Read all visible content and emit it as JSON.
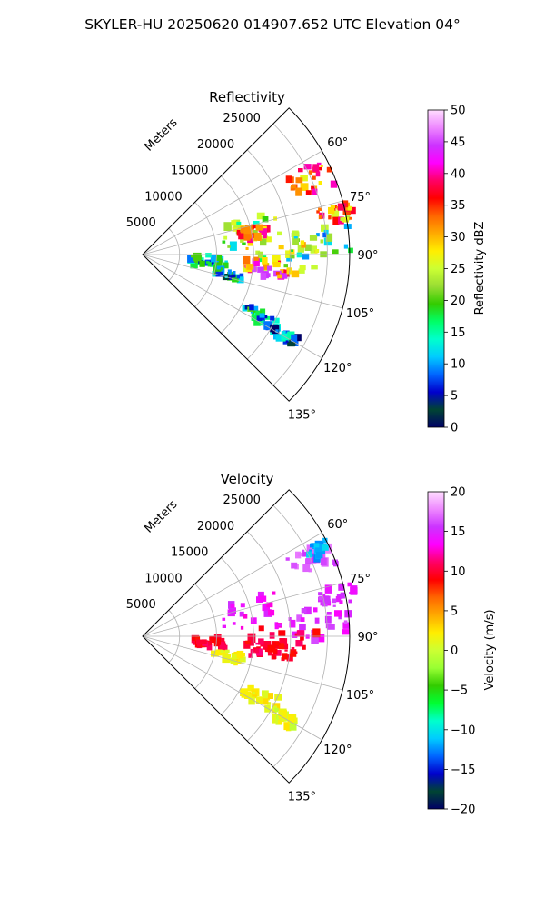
{
  "figure": {
    "suptitle": "SKYLER-HU  20250620  014907.652 UTC Elevation 04°"
  },
  "chart_data": [
    {
      "type": "heatmap",
      "projection": "polar-sector",
      "title": "Reflectivity",
      "range_label": "Meters",
      "range_ticks": [
        5000,
        10000,
        15000,
        20000,
        25000
      ],
      "range_max": 28000,
      "azimuth_range_deg": [
        45,
        135
      ],
      "azimuth_ticks": [
        60,
        75,
        90,
        105,
        120,
        135
      ],
      "azimuth_tick_labels": [
        "60°",
        "75°",
        "90°",
        "105°",
        "120°",
        "135°"
      ],
      "grid": true,
      "colorbar": {
        "label": "Reflectivity dBZ",
        "min": 0,
        "max": 50,
        "ticks": [
          0,
          5,
          10,
          15,
          20,
          25,
          30,
          35,
          40,
          45,
          50
        ],
        "stops": [
          "#000066",
          "#004433",
          "#0000cc",
          "#0066ff",
          "#00ccff",
          "#00ffcc",
          "#00ff66",
          "#33cc00",
          "#99dd33",
          "#ccff33",
          "#ffee00",
          "#ffaa00",
          "#ff6600",
          "#ff0000",
          "#ff0066",
          "#ff00ff",
          "#cc33ff",
          "#ee88ff",
          "#ffddff"
        ]
      },
      "echoes": [
        {
          "az": 66,
          "r": 25000,
          "arc": 4.0,
          "depth": 3000,
          "dbz": 38
        },
        {
          "az": 78,
          "r": 27000,
          "arc": 2.5,
          "depth": 2600,
          "dbz": 36
        },
        {
          "az": 78,
          "r": 15000,
          "arc": 8.0,
          "depth": 4000,
          "dbz": 26
        },
        {
          "az": 79,
          "r": 15500,
          "arc": 3.0,
          "depth": 2000,
          "dbz": 37
        },
        {
          "az": 86,
          "r": 24000,
          "arc": 5.0,
          "depth": 4200,
          "dbz": 22
        },
        {
          "az": 92,
          "r": 19000,
          "arc": 7.0,
          "depth": 5000,
          "dbz": 28
        },
        {
          "az": 96,
          "r": 17000,
          "arc": 4.0,
          "depth": 3000,
          "dbz": 42
        },
        {
          "az": 95,
          "r": 9000,
          "arc": 4.0,
          "depth": 2500,
          "dbz": 18
        },
        {
          "az": 103,
          "r": 12000,
          "arc": 3.0,
          "depth": 2000,
          "dbz": 16
        },
        {
          "az": 118,
          "r": 18000,
          "arc": 3.5,
          "depth": 2500,
          "dbz": 17
        },
        {
          "az": 120,
          "r": 22000,
          "arc": 2.0,
          "depth": 1800,
          "dbz": 12
        }
      ]
    },
    {
      "type": "heatmap",
      "projection": "polar-sector",
      "title": "Velocity",
      "range_label": "Meters",
      "range_ticks": [
        5000,
        10000,
        15000,
        20000,
        25000
      ],
      "range_max": 28000,
      "azimuth_range_deg": [
        45,
        135
      ],
      "azimuth_ticks": [
        60,
        75,
        90,
        105,
        120,
        135
      ],
      "azimuth_tick_labels": [
        "60°",
        "75°",
        "90°",
        "105°",
        "120°",
        "135°"
      ],
      "grid": true,
      "colorbar": {
        "label": "Velocity (m/s)",
        "min": -20,
        "max": 20,
        "ticks": [
          -20,
          -15,
          -10,
          -5,
          0,
          5,
          10,
          15,
          20
        ],
        "stops": [
          "#000066",
          "#004433",
          "#0000cc",
          "#0066ff",
          "#00ccff",
          "#00ffcc",
          "#00ff33",
          "#33cc00",
          "#99ff33",
          "#ccff33",
          "#ffee00",
          "#ffaa00",
          "#ff6600",
          "#ff0000",
          "#ff0066",
          "#ff00ff",
          "#cc33ff",
          "#ee88ff",
          "#ffddff"
        ]
      },
      "echoes": [
        {
          "az": 66,
          "r": 25000,
          "arc": 4.0,
          "depth": 3000,
          "vel": 16
        },
        {
          "az": 64,
          "r": 26500,
          "arc": 2.0,
          "depth": 1400,
          "vel": -12
        },
        {
          "az": 78,
          "r": 27000,
          "arc": 2.5,
          "depth": 2600,
          "vel": 15
        },
        {
          "az": 78,
          "r": 15000,
          "arc": 8.0,
          "depth": 4000,
          "vel": 14
        },
        {
          "az": 86,
          "r": 24000,
          "arc": 5.0,
          "depth": 4200,
          "vel": 15
        },
        {
          "az": 92,
          "r": 19000,
          "arc": 7.0,
          "depth": 5000,
          "vel": 10
        },
        {
          "az": 96,
          "r": 17000,
          "arc": 4.0,
          "depth": 3000,
          "vel": 10
        },
        {
          "az": 95,
          "r": 9000,
          "arc": 4.0,
          "depth": 2500,
          "vel": 10
        },
        {
          "az": 103,
          "r": 12000,
          "arc": 3.0,
          "depth": 2000,
          "vel": 2
        },
        {
          "az": 118,
          "r": 18000,
          "arc": 3.5,
          "depth": 2500,
          "vel": 2
        },
        {
          "az": 120,
          "r": 22000,
          "arc": 2.0,
          "depth": 1800,
          "vel": 1
        }
      ]
    }
  ]
}
